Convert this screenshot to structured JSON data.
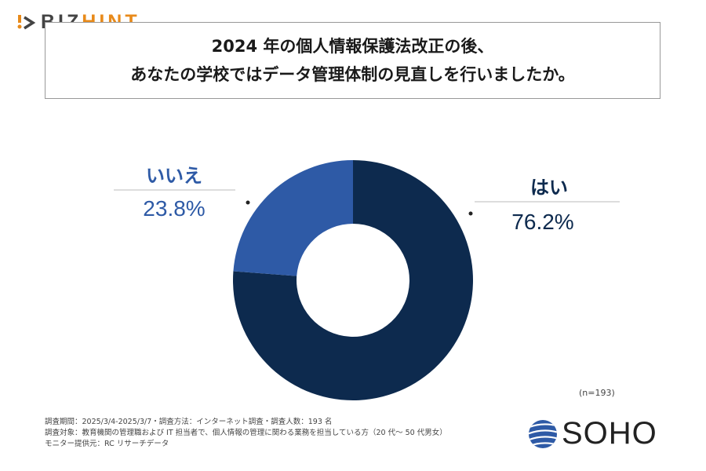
{
  "brand": {
    "logo_left": "BIZ",
    "logo_right": "HINT",
    "logo_colors": {
      "biz": "#444444",
      "hint": "#e88a1a"
    }
  },
  "title": {
    "line1": "2024 年の個人情報保護法改正の後、",
    "line2": "あなたの学校ではデータ管理体制の見直しを行いましたか。"
  },
  "chart_data": {
    "type": "pie",
    "donut": true,
    "start": "12 o'clock, clockwise",
    "categories": [
      "はい",
      "いいえ"
    ],
    "values": [
      76.2,
      23.8
    ],
    "labels": [
      "76.2%",
      "23.8%"
    ],
    "colors": [
      "#0d2a4e",
      "#2e5aa6"
    ],
    "label_colors": [
      "#0d2a4e",
      "#2e5aa6"
    ],
    "sample_size": "(n=193)"
  },
  "footer": {
    "line1": "調査期間：2025/3/4-2025/3/7・調査方法：インターネット調査・調査人数：193 名",
    "line2": "調査対象：教育機関の管理職および IT 担当者で、個人情報の管理に関わる業務を担当している方（20 代～ 50 代男女）",
    "line3": "モニター提供元：RC リサーチデータ"
  },
  "soho_logo": {
    "text": "SOHO",
    "color": "#2e5aa6"
  }
}
